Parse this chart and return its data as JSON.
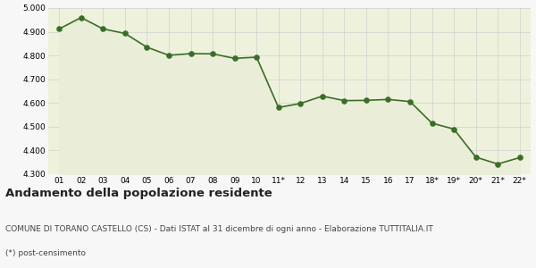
{
  "x_labels": [
    "01",
    "02",
    "03",
    "04",
    "05",
    "06",
    "07",
    "08",
    "09",
    "10",
    "11*",
    "12",
    "13",
    "14",
    "15",
    "16",
    "17",
    "18*",
    "19*",
    "20*",
    "21*",
    "22*"
  ],
  "values": [
    4912,
    4960,
    4912,
    4893,
    4835,
    4801,
    4808,
    4807,
    4788,
    4793,
    4581,
    4598,
    4629,
    4610,
    4611,
    4615,
    4606,
    4515,
    4490,
    4372,
    4343,
    4370
  ],
  "line_color": "#3a6e28",
  "fill_color": "#eaeed8",
  "marker_color": "#3a6e28",
  "bg_color": "#f7f7f7",
  "plot_bg_color": "#eef2dc",
  "grid_color": "#d0d0d0",
  "ylim": [
    4300,
    5000
  ],
  "yticks": [
    4300,
    4400,
    4500,
    4600,
    4700,
    4800,
    4900,
    5000
  ],
  "title": "Andamento della popolazione residente",
  "subtitle": "COMUNE DI TORANO CASTELLO (CS) - Dati ISTAT al 31 dicembre di ogni anno - Elaborazione TUTTITALIA.IT",
  "footnote": "(*) post-censimento",
  "title_fontsize": 9.5,
  "subtitle_fontsize": 6.5,
  "footnote_fontsize": 6.5
}
